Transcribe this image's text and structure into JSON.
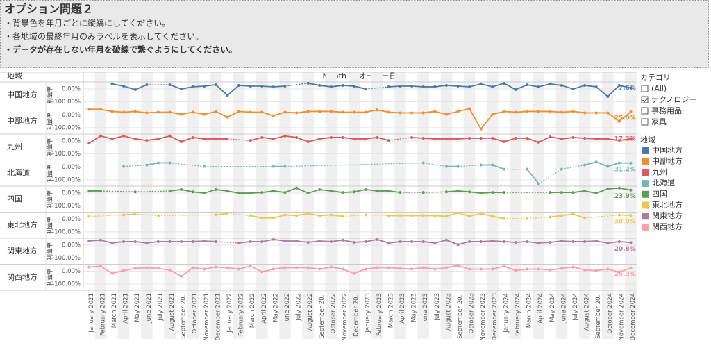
{
  "header": {
    "title": "オプション問題２",
    "notes": [
      "・背景色を年月ごとに縦縞にしてください。",
      "・各地域の最終年月のみラベルを表示してください。",
      "・データが存在しない年月を破線で繋ぐようにしてください。"
    ]
  },
  "filter": {
    "title": "カテゴリ",
    "options": [
      "(All)",
      "テクノロジー",
      "事務用品",
      "家具"
    ],
    "checked": [
      false,
      true,
      false,
      false
    ]
  },
  "legend_title": "地域",
  "chart_data": {
    "type": "line",
    "row_label": "地域",
    "x_label": "Month of オーダー日",
    "y_label": "利益率",
    "categories": [
      "January 2021",
      "February 2021",
      "March 2021",
      "April 2021",
      "May 2021",
      "June 2021",
      "July 2021",
      "August 2021",
      "September 20..",
      "October 2021",
      "November 2021",
      "December 2021",
      "January 2022",
      "February 2022",
      "March 2022",
      "April 2022",
      "May 2022",
      "June 2022",
      "July 2022",
      "August 2022",
      "September 20..",
      "October 2022",
      "November 2022",
      "December 20..",
      "January 2023",
      "February 2023",
      "March 2023",
      "April 2023",
      "May 2023",
      "June 2023",
      "July 2023",
      "August 2023",
      "September 20..",
      "October 2023",
      "November 2023",
      "December 2023",
      "January 2024",
      "February 2024",
      "March 2024",
      "April 2024",
      "May 2024",
      "June 2024",
      "July 2024",
      "August 2024",
      "September 20..",
      "October 2024",
      "November 2024",
      "December 2024"
    ],
    "ylim": [
      -150,
      55
    ],
    "yticks": [
      {
        "value": 0,
        "label": "0.00%"
      },
      {
        "value": -100,
        "label": "-100.00%"
      }
    ],
    "grid": true,
    "series": [
      {
        "name": "中国地方",
        "color": "#4e79a7",
        "values": [
          null,
          null,
          40,
          22,
          -5,
          33,
          null,
          33,
          0,
          17,
          22,
          33,
          -50,
          28,
          22,
          22,
          17,
          22,
          null,
          45,
          28,
          17,
          28,
          22,
          0,
          null,
          17,
          22,
          22,
          17,
          17,
          28,
          22,
          17,
          40,
          17,
          45,
          -5,
          33,
          17,
          40,
          28,
          0,
          28,
          17,
          -60,
          28,
          7.6
        ],
        "value_labels": [
          null,
          null,
          null,
          null,
          null,
          null,
          null,
          null,
          null,
          null,
          null,
          null,
          null,
          null,
          null,
          null,
          null,
          null,
          null,
          null,
          null,
          null,
          null,
          null,
          null,
          null,
          null,
          null,
          null,
          null,
          null,
          null,
          null,
          null,
          null,
          null,
          null,
          null,
          null,
          null,
          null,
          null,
          null,
          null,
          null,
          null,
          null,
          "7.6%"
        ]
      },
      {
        "name": "中部地方",
        "color": "#f28e2b",
        "values": [
          45,
          45,
          28,
          22,
          28,
          17,
          22,
          22,
          5,
          22,
          5,
          28,
          -17,
          28,
          22,
          22,
          -5,
          22,
          17,
          28,
          28,
          28,
          22,
          22,
          22,
          40,
          22,
          17,
          17,
          17,
          28,
          5,
          28,
          50,
          -110,
          5,
          28,
          22,
          28,
          28,
          28,
          22,
          28,
          17,
          17,
          17,
          -50,
          25.0
        ],
        "value_labels": [
          null,
          null,
          null,
          null,
          null,
          null,
          null,
          null,
          null,
          null,
          null,
          null,
          null,
          null,
          null,
          null,
          null,
          null,
          null,
          null,
          null,
          null,
          null,
          null,
          null,
          null,
          null,
          null,
          null,
          null,
          null,
          null,
          null,
          null,
          null,
          null,
          null,
          null,
          null,
          null,
          null,
          null,
          null,
          null,
          null,
          null,
          null,
          "25.0%"
        ]
      },
      {
        "name": "九州",
        "color": "#e15759",
        "values": [
          -17,
          40,
          17,
          40,
          17,
          5,
          17,
          40,
          -5,
          28,
          17,
          17,
          17,
          null,
          5,
          28,
          17,
          40,
          28,
          -5,
          17,
          28,
          28,
          17,
          17,
          28,
          5,
          null,
          28,
          22,
          17,
          17,
          17,
          22,
          22,
          22,
          -5,
          22,
          22,
          -10,
          33,
          17,
          28,
          22,
          17,
          17,
          5,
          17.2
        ],
        "value_labels": [
          null,
          null,
          null,
          null,
          null,
          null,
          null,
          null,
          null,
          null,
          null,
          null,
          null,
          null,
          null,
          null,
          null,
          null,
          null,
          null,
          null,
          null,
          null,
          null,
          null,
          null,
          null,
          null,
          null,
          null,
          null,
          null,
          null,
          null,
          null,
          null,
          null,
          null,
          null,
          null,
          null,
          null,
          null,
          null,
          null,
          null,
          null,
          "17.2%"
        ]
      },
      {
        "name": "北海道",
        "color": "#76b7b2",
        "values": [
          null,
          null,
          null,
          5,
          null,
          17,
          33,
          33,
          null,
          null,
          5,
          null,
          null,
          null,
          null,
          null,
          5,
          5,
          null,
          null,
          null,
          null,
          null,
          null,
          null,
          null,
          null,
          null,
          null,
          33,
          null,
          5,
          5,
          null,
          17,
          17,
          -17,
          null,
          -17,
          -130,
          null,
          -17,
          null,
          17,
          40,
          5,
          33,
          31.2
        ],
        "value_labels": [
          null,
          null,
          null,
          null,
          null,
          null,
          null,
          null,
          null,
          null,
          null,
          null,
          null,
          null,
          null,
          null,
          null,
          null,
          null,
          null,
          null,
          null,
          null,
          null,
          null,
          null,
          null,
          null,
          null,
          null,
          null,
          null,
          null,
          null,
          null,
          null,
          null,
          null,
          null,
          null,
          null,
          null,
          null,
          null,
          null,
          null,
          null,
          "31.2%"
        ]
      },
      {
        "name": "四国",
        "color": "#59a14f",
        "values": [
          17,
          17,
          null,
          null,
          10,
          null,
          null,
          17,
          28,
          10,
          0,
          28,
          17,
          0,
          0,
          5,
          17,
          5,
          40,
          0,
          28,
          17,
          5,
          10,
          28,
          17,
          17,
          5,
          null,
          5,
          null,
          10,
          17,
          10,
          0,
          5,
          5,
          null,
          null,
          null,
          5,
          5,
          5,
          17,
          0,
          33,
          40,
          23.9
        ],
        "value_labels": [
          null,
          null,
          null,
          null,
          null,
          null,
          null,
          null,
          null,
          null,
          null,
          null,
          null,
          null,
          null,
          null,
          null,
          null,
          null,
          null,
          null,
          null,
          null,
          null,
          null,
          null,
          null,
          null,
          null,
          null,
          null,
          null,
          null,
          null,
          null,
          null,
          null,
          null,
          null,
          null,
          null,
          null,
          null,
          null,
          null,
          null,
          null,
          "23.9%"
        ]
      },
      {
        "name": "東北地方",
        "color": "#edc948",
        "values": [
          22,
          null,
          null,
          33,
          40,
          null,
          28,
          null,
          null,
          null,
          null,
          33,
          45,
          null,
          28,
          10,
          10,
          33,
          28,
          45,
          28,
          33,
          22,
          null,
          33,
          null,
          28,
          28,
          28,
          28,
          28,
          22,
          50,
          22,
          45,
          22,
          5,
          null,
          5,
          null,
          17,
          28,
          40,
          10,
          null,
          null,
          33,
          30.0
        ],
        "value_labels": [
          null,
          null,
          null,
          null,
          null,
          null,
          null,
          null,
          null,
          null,
          null,
          null,
          null,
          null,
          null,
          null,
          null,
          null,
          null,
          null,
          null,
          null,
          null,
          null,
          null,
          null,
          null,
          null,
          null,
          null,
          null,
          null,
          null,
          null,
          null,
          null,
          null,
          null,
          null,
          null,
          null,
          null,
          null,
          null,
          null,
          null,
          null,
          "30.0%"
        ]
      },
      {
        "name": "関東地方",
        "color": "#b07aa1",
        "values": [
          33,
          40,
          17,
          28,
          28,
          17,
          28,
          28,
          28,
          28,
          33,
          28,
          null,
          17,
          28,
          28,
          45,
          33,
          33,
          22,
          33,
          28,
          40,
          22,
          28,
          45,
          17,
          28,
          28,
          28,
          17,
          40,
          5,
          28,
          28,
          33,
          28,
          22,
          28,
          17,
          22,
          33,
          28,
          28,
          33,
          17,
          28,
          20.8
        ],
        "value_labels": [
          null,
          null,
          null,
          null,
          null,
          null,
          null,
          null,
          null,
          null,
          null,
          null,
          null,
          null,
          null,
          null,
          null,
          null,
          null,
          null,
          null,
          null,
          null,
          null,
          null,
          null,
          null,
          null,
          null,
          null,
          null,
          null,
          null,
          null,
          null,
          null,
          null,
          null,
          null,
          null,
          null,
          null,
          null,
          null,
          null,
          null,
          null,
          "20.8%"
        ]
      },
      {
        "name": "関西地方",
        "color": "#ff9da7",
        "values": [
          33,
          40,
          -17,
          5,
          22,
          28,
          22,
          10,
          -40,
          28,
          17,
          33,
          28,
          17,
          40,
          -5,
          17,
          28,
          28,
          28,
          17,
          33,
          17,
          -17,
          17,
          28,
          28,
          22,
          17,
          28,
          17,
          28,
          45,
          17,
          17,
          17,
          40,
          5,
          17,
          17,
          10,
          22,
          33,
          10,
          5,
          17,
          -5,
          25.3
        ],
        "value_labels": [
          null,
          null,
          null,
          null,
          null,
          null,
          null,
          null,
          null,
          null,
          null,
          null,
          null,
          null,
          null,
          null,
          null,
          null,
          null,
          null,
          null,
          null,
          null,
          null,
          null,
          null,
          null,
          null,
          null,
          null,
          null,
          null,
          null,
          null,
          null,
          null,
          null,
          null,
          null,
          null,
          null,
          null,
          null,
          null,
          null,
          null,
          null,
          "25.3%"
        ]
      }
    ]
  }
}
